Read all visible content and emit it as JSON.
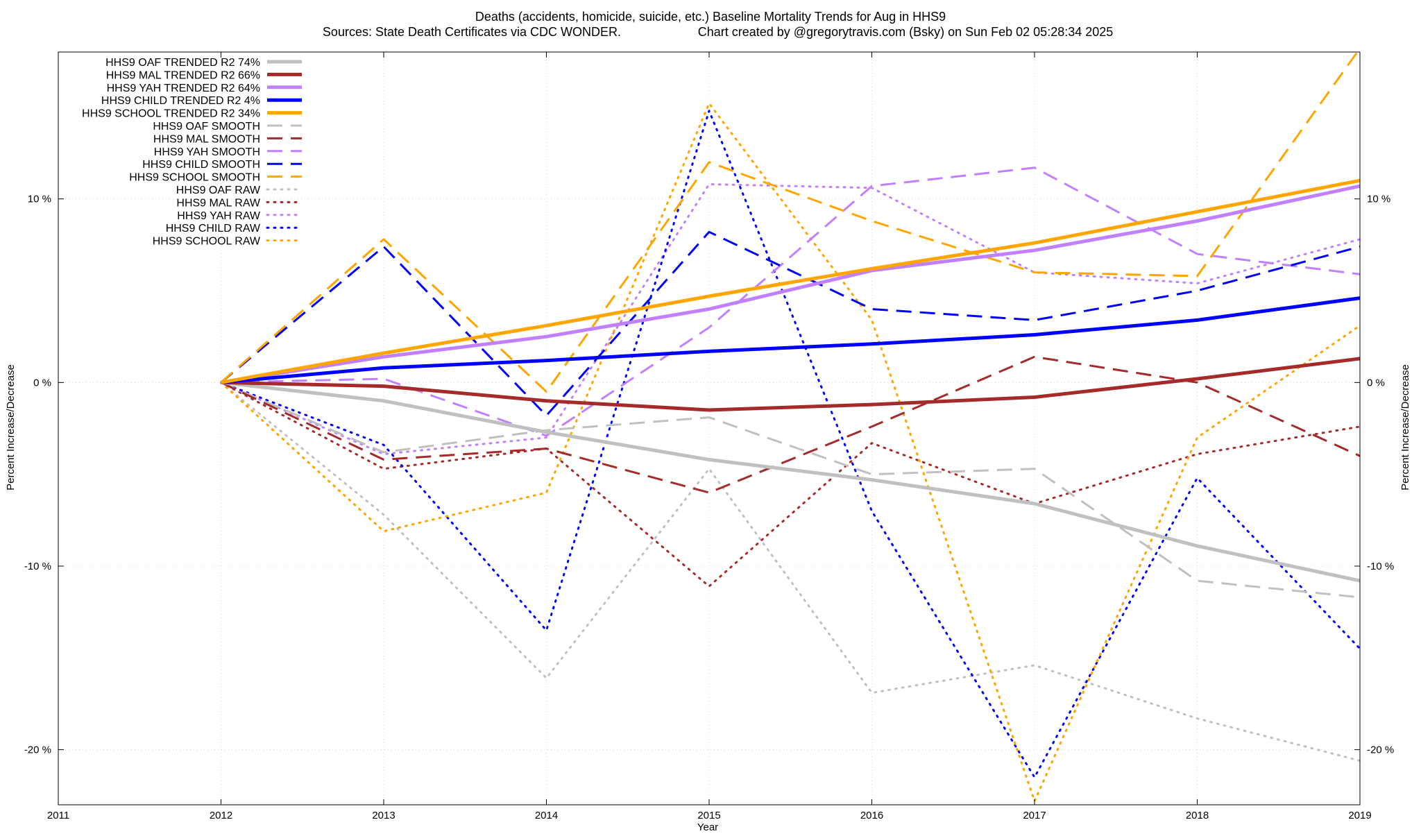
{
  "chart_data": {
    "type": "line",
    "title": "Deaths (accidents, homicide, suicide, etc.)  Baseline Mortality Trends for Aug in HHS9",
    "subtitle_left": "Sources: State Death Certificates via CDC WONDER.",
    "subtitle_right": "Chart created by @gregorytravis.com (Bsky) on Sun Feb 02 05:28:34 2025",
    "xlabel": "Year",
    "ylabel_left": "Percent Increase/Decrease",
    "ylabel_right": "Percent Increase/Decrease",
    "xlim": [
      2011,
      2019
    ],
    "ylim": [
      -23,
      18
    ],
    "grid": true,
    "legend_position": "top-left",
    "x_ticks": [
      {
        "value": 2011,
        "label": "2011"
      },
      {
        "value": 2012,
        "label": "2012"
      },
      {
        "value": 2013,
        "label": "2013"
      },
      {
        "value": 2014,
        "label": "2014"
      },
      {
        "value": 2015,
        "label": "2015"
      },
      {
        "value": 2016,
        "label": "2016"
      },
      {
        "value": 2017,
        "label": "2017"
      },
      {
        "value": 2018,
        "label": "2018"
      },
      {
        "value": 2019,
        "label": "2019"
      }
    ],
    "y_ticks": [
      {
        "value": 10,
        "label": "10 %"
      },
      {
        "value": 0,
        "label": "0 %"
      },
      {
        "value": -10,
        "label": "-10 %"
      },
      {
        "value": -20,
        "label": "-20 %"
      }
    ],
    "x": [
      2012,
      2013,
      2014,
      2015,
      2016,
      2017,
      2018,
      2019
    ],
    "series": [
      {
        "name": "HHS9 OAF TRENDED R2  74%",
        "style": "solid",
        "color": "#c0c0c0",
        "values": [
          0,
          -1.0,
          -2.7,
          -4.2,
          -5.3,
          -6.6,
          -8.9,
          -10.8
        ]
      },
      {
        "name": "HHS9 MAL TRENDED R2  66%",
        "style": "solid",
        "color": "#a52a2a",
        "values": [
          0,
          -0.2,
          -1.0,
          -1.5,
          -1.2,
          -0.8,
          0.2,
          1.3
        ]
      },
      {
        "name": "HHS9 YAH TRENDED R2  64%",
        "style": "solid",
        "color": "#c080ff",
        "values": [
          0,
          1.4,
          2.5,
          4.0,
          6.1,
          7.2,
          8.8,
          10.7
        ]
      },
      {
        "name": "HHS9 CHILD TRENDED R2   4%",
        "style": "solid",
        "color": "#0000ff",
        "values": [
          0,
          0.8,
          1.2,
          1.7,
          2.1,
          2.6,
          3.4,
          4.6
        ]
      },
      {
        "name": "HHS9 SCHOOL TRENDED R2  34%",
        "style": "solid",
        "color": "#ffa500",
        "values": [
          0,
          1.6,
          3.1,
          4.7,
          6.2,
          7.6,
          9.3,
          11.0
        ]
      },
      {
        "name": "HHS9 OAF SMOOTH",
        "style": "dashed",
        "color": "#c0c0c0",
        "values": [
          0,
          -3.8,
          -2.6,
          -1.9,
          -5.0,
          -4.7,
          -10.8,
          -11.7
        ]
      },
      {
        "name": "HHS9 MAL SMOOTH",
        "style": "dashed",
        "color": "#a52a2a",
        "values": [
          0,
          -4.2,
          -3.6,
          -6.0,
          -2.4,
          1.4,
          0,
          -4.0
        ]
      },
      {
        "name": "HHS9 YAH SMOOTH",
        "style": "dashed",
        "color": "#c080ff",
        "values": [
          0,
          0.2,
          -2.9,
          3.0,
          10.7,
          11.7,
          7.0,
          5.9
        ]
      },
      {
        "name": "HHS9 CHILD SMOOTH",
        "style": "dashed",
        "color": "#0000ff",
        "values": [
          0,
          7.4,
          -1.8,
          8.2,
          4.0,
          3.4,
          5.0,
          7.4
        ]
      },
      {
        "name": "HHS9 SCHOOL SMOOTH",
        "style": "dashed",
        "color": "#ffa500",
        "values": [
          0,
          7.8,
          -0.5,
          12.0,
          8.8,
          6.0,
          5.8,
          18.2
        ]
      },
      {
        "name": "HHS9 OAF RAW",
        "style": "dotted",
        "color": "#c0c0c0",
        "values": [
          0,
          -7.2,
          -16.1,
          -4.7,
          -16.9,
          -15.4,
          -18.3,
          -20.6
        ]
      },
      {
        "name": "HHS9 MAL RAW",
        "style": "dotted",
        "color": "#a52a2a",
        "values": [
          0,
          -4.7,
          -3.6,
          -11.1,
          -3.3,
          -6.6,
          -3.9,
          -2.4
        ]
      },
      {
        "name": "HHS9 YAH RAW",
        "style": "dotted",
        "color": "#c080ff",
        "values": [
          0,
          -3.9,
          -3.0,
          10.8,
          10.6,
          6.0,
          5.4,
          7.8
        ]
      },
      {
        "name": "HHS9 CHILD RAW",
        "style": "dotted",
        "color": "#0000ff",
        "values": [
          0,
          -3.4,
          -13.5,
          14.8,
          -7.0,
          -21.5,
          -5.2,
          -14.5
        ]
      },
      {
        "name": "HHS9 SCHOOL RAW",
        "style": "dotted",
        "color": "#ffa500",
        "values": [
          0,
          -8.1,
          -6.0,
          15.2,
          3.4,
          -22.8,
          -3.0,
          3.1
        ]
      }
    ]
  }
}
